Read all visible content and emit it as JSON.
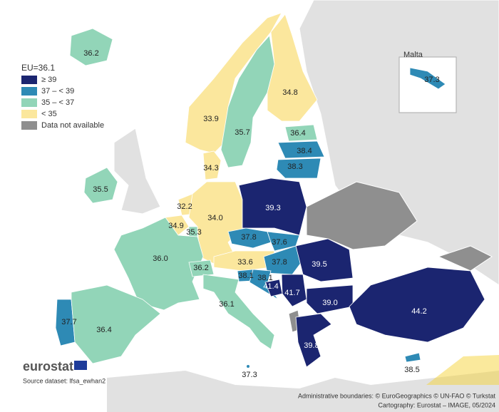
{
  "legend": {
    "title": "EU=36.1",
    "breaks": [
      35,
      37,
      39
    ],
    "items": [
      {
        "label": "≥ 39",
        "color": "#1b2570"
      },
      {
        "label": "37 – < 39",
        "color": "#2e8ab5"
      },
      {
        "label": "35 – < 37",
        "color": "#92d5b8"
      },
      {
        "label": "< 35",
        "color": "#fbe79d"
      },
      {
        "label": "Data not available",
        "color": "#8f8f8f"
      }
    ]
  },
  "inset_title": "Malta",
  "values": [
    36.2,
    33.9,
    35.7,
    34.8,
    36.4,
    38.4,
    38.3,
    34.3,
    35.5,
    32.2,
    34.9,
    35.3,
    34.0,
    39.3,
    37.8,
    37.6,
    36.0,
    36.2,
    33.6,
    37.8,
    39.5,
    38.1,
    38.1,
    41.4,
    41.7,
    39.0,
    44.2,
    36.1,
    37.7,
    36.4,
    39.8,
    37.3,
    38.5
  ],
  "value_labels": [
    "36.2",
    "33.9",
    "35.7",
    "34.8",
    "36.4",
    "38.4",
    "38.3",
    "34.3",
    "35.5",
    "32.2",
    "34.9",
    "35.3",
    "34.0",
    "39.3",
    "37.8",
    "37.6",
    "36.0",
    "36.2",
    "33.6",
    "37.8",
    "39.5",
    "38.1",
    "38.1",
    "41.4",
    "41.7",
    "39.0",
    "44.2",
    "36.1",
    "37.7",
    "36.4",
    "39.8",
    "37.3",
    "38.5"
  ],
  "footer": {
    "brand": "eurostat",
    "source": "Source dataset: lfsa_ewhan2",
    "credits": "Administrative boundaries: © EuroGeographics © UN-FAO © Turkstat",
    "cartography": "Cartography: Eurostat – IMAGE, 05/2024"
  }
}
